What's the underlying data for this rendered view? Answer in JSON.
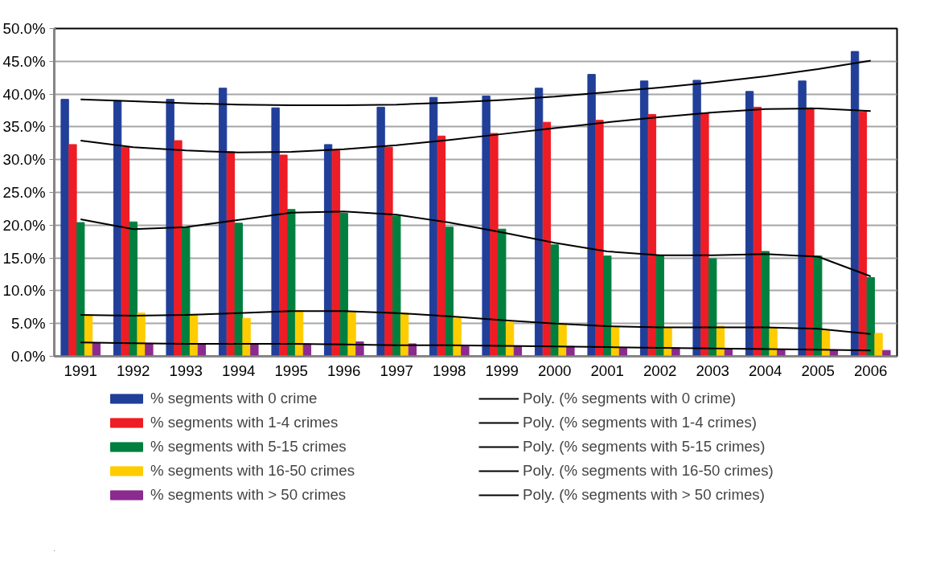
{
  "chart_data": {
    "type": "bar",
    "categories": [
      "1991",
      "1992",
      "1993",
      "1994",
      "1995",
      "1996",
      "1997",
      "1998",
      "1999",
      "2000",
      "2001",
      "2002",
      "2003",
      "2004",
      "2005",
      "2006"
    ],
    "series": [
      {
        "name": "% segments with 0 crime",
        "color": "#213f99",
        "values": [
          39.2,
          39.0,
          39.2,
          40.9,
          37.9,
          32.3,
          38.0,
          39.5,
          39.7,
          40.9,
          43.0,
          42.0,
          42.1,
          40.4,
          42.0,
          46.5
        ]
      },
      {
        "name": "% segments with 1-4 crimes",
        "color": "#ee1c25",
        "values": [
          32.3,
          31.9,
          32.9,
          31.2,
          30.7,
          31.4,
          31.9,
          33.6,
          34.0,
          35.7,
          36.0,
          36.9,
          37.1,
          38.0,
          37.9,
          37.3
        ]
      },
      {
        "name": "% segments with 5-15 crimes",
        "color": "#007f3e",
        "values": [
          20.4,
          20.5,
          19.7,
          20.3,
          22.4,
          21.8,
          21.4,
          19.7,
          19.4,
          17.0,
          15.3,
          15.4,
          14.9,
          16.0,
          15.3,
          12.0
        ]
      },
      {
        "name": "% segments with 16-50 crimes",
        "color": "#ffcc00",
        "values": [
          6.3,
          6.6,
          6.4,
          5.8,
          7.0,
          6.7,
          6.6,
          5.8,
          5.2,
          4.9,
          4.4,
          4.4,
          4.6,
          4.4,
          3.9,
          3.5
        ]
      },
      {
        "name": "% segments with > 50 crimes",
        "color": "#8b2a8f",
        "values": [
          2.0,
          1.9,
          1.9,
          1.9,
          1.9,
          2.2,
          1.9,
          1.7,
          1.6,
          1.5,
          1.2,
          1.3,
          1.1,
          1.1,
          0.9,
          0.9
        ]
      },
      {
        "name": "Poly. (% segments with 0 crime)",
        "type": "line",
        "color": "#000000",
        "values": [
          39.2,
          38.9,
          38.6,
          38.4,
          38.3,
          38.3,
          38.4,
          38.7,
          39.1,
          39.6,
          40.3,
          41.0,
          41.8,
          42.7,
          43.8,
          45.1
        ]
      },
      {
        "name": "Poly. (% segments with 1-4 crimes)",
        "type": "line",
        "color": "#000000",
        "values": [
          32.9,
          31.9,
          31.4,
          31.1,
          31.2,
          31.6,
          32.2,
          33.0,
          33.9,
          34.8,
          35.7,
          36.5,
          37.2,
          37.7,
          37.8,
          37.4
        ]
      },
      {
        "name": "Poly. (% segments with 5-15 crimes)",
        "type": "line",
        "color": "#000000",
        "values": [
          20.9,
          19.4,
          19.7,
          20.8,
          21.9,
          22.1,
          21.6,
          20.4,
          18.9,
          17.3,
          16.0,
          15.4,
          15.4,
          15.6,
          15.2,
          12.2
        ]
      },
      {
        "name": "Poly. (% segments with 16-50 crimes)",
        "type": "line",
        "color": "#000000",
        "values": [
          6.3,
          6.2,
          6.3,
          6.6,
          6.9,
          6.9,
          6.6,
          6.1,
          5.5,
          5.0,
          4.6,
          4.4,
          4.4,
          4.4,
          4.2,
          3.4
        ]
      },
      {
        "name": "Poly. (% segments with > 50 crimes)",
        "type": "line",
        "color": "#000000",
        "values": [
          2.1,
          2.0,
          1.9,
          1.9,
          1.9,
          1.8,
          1.7,
          1.7,
          1.6,
          1.5,
          1.4,
          1.3,
          1.2,
          1.1,
          1.0,
          0.9
        ]
      }
    ],
    "ylim": [
      0,
      50
    ],
    "yticks": [
      {
        "value": 0,
        "label": "0.0%"
      },
      {
        "value": 5,
        "label": "5.0%"
      },
      {
        "value": 10,
        "label": "10.0%"
      },
      {
        "value": 15,
        "label": "15.0%"
      },
      {
        "value": 20,
        "label": "20.0%"
      },
      {
        "value": 25,
        "label": "25.0%"
      },
      {
        "value": 30,
        "label": "30.0%"
      },
      {
        "value": 35,
        "label": "35.0%"
      },
      {
        "value": 40,
        "label": "40.0%"
      },
      {
        "value": 45,
        "label": "45.0%"
      },
      {
        "value": 50,
        "label": "50.0%"
      }
    ],
    "grid": "y",
    "legend": "bottom",
    "marker": "none",
    "line_style": "solid"
  }
}
